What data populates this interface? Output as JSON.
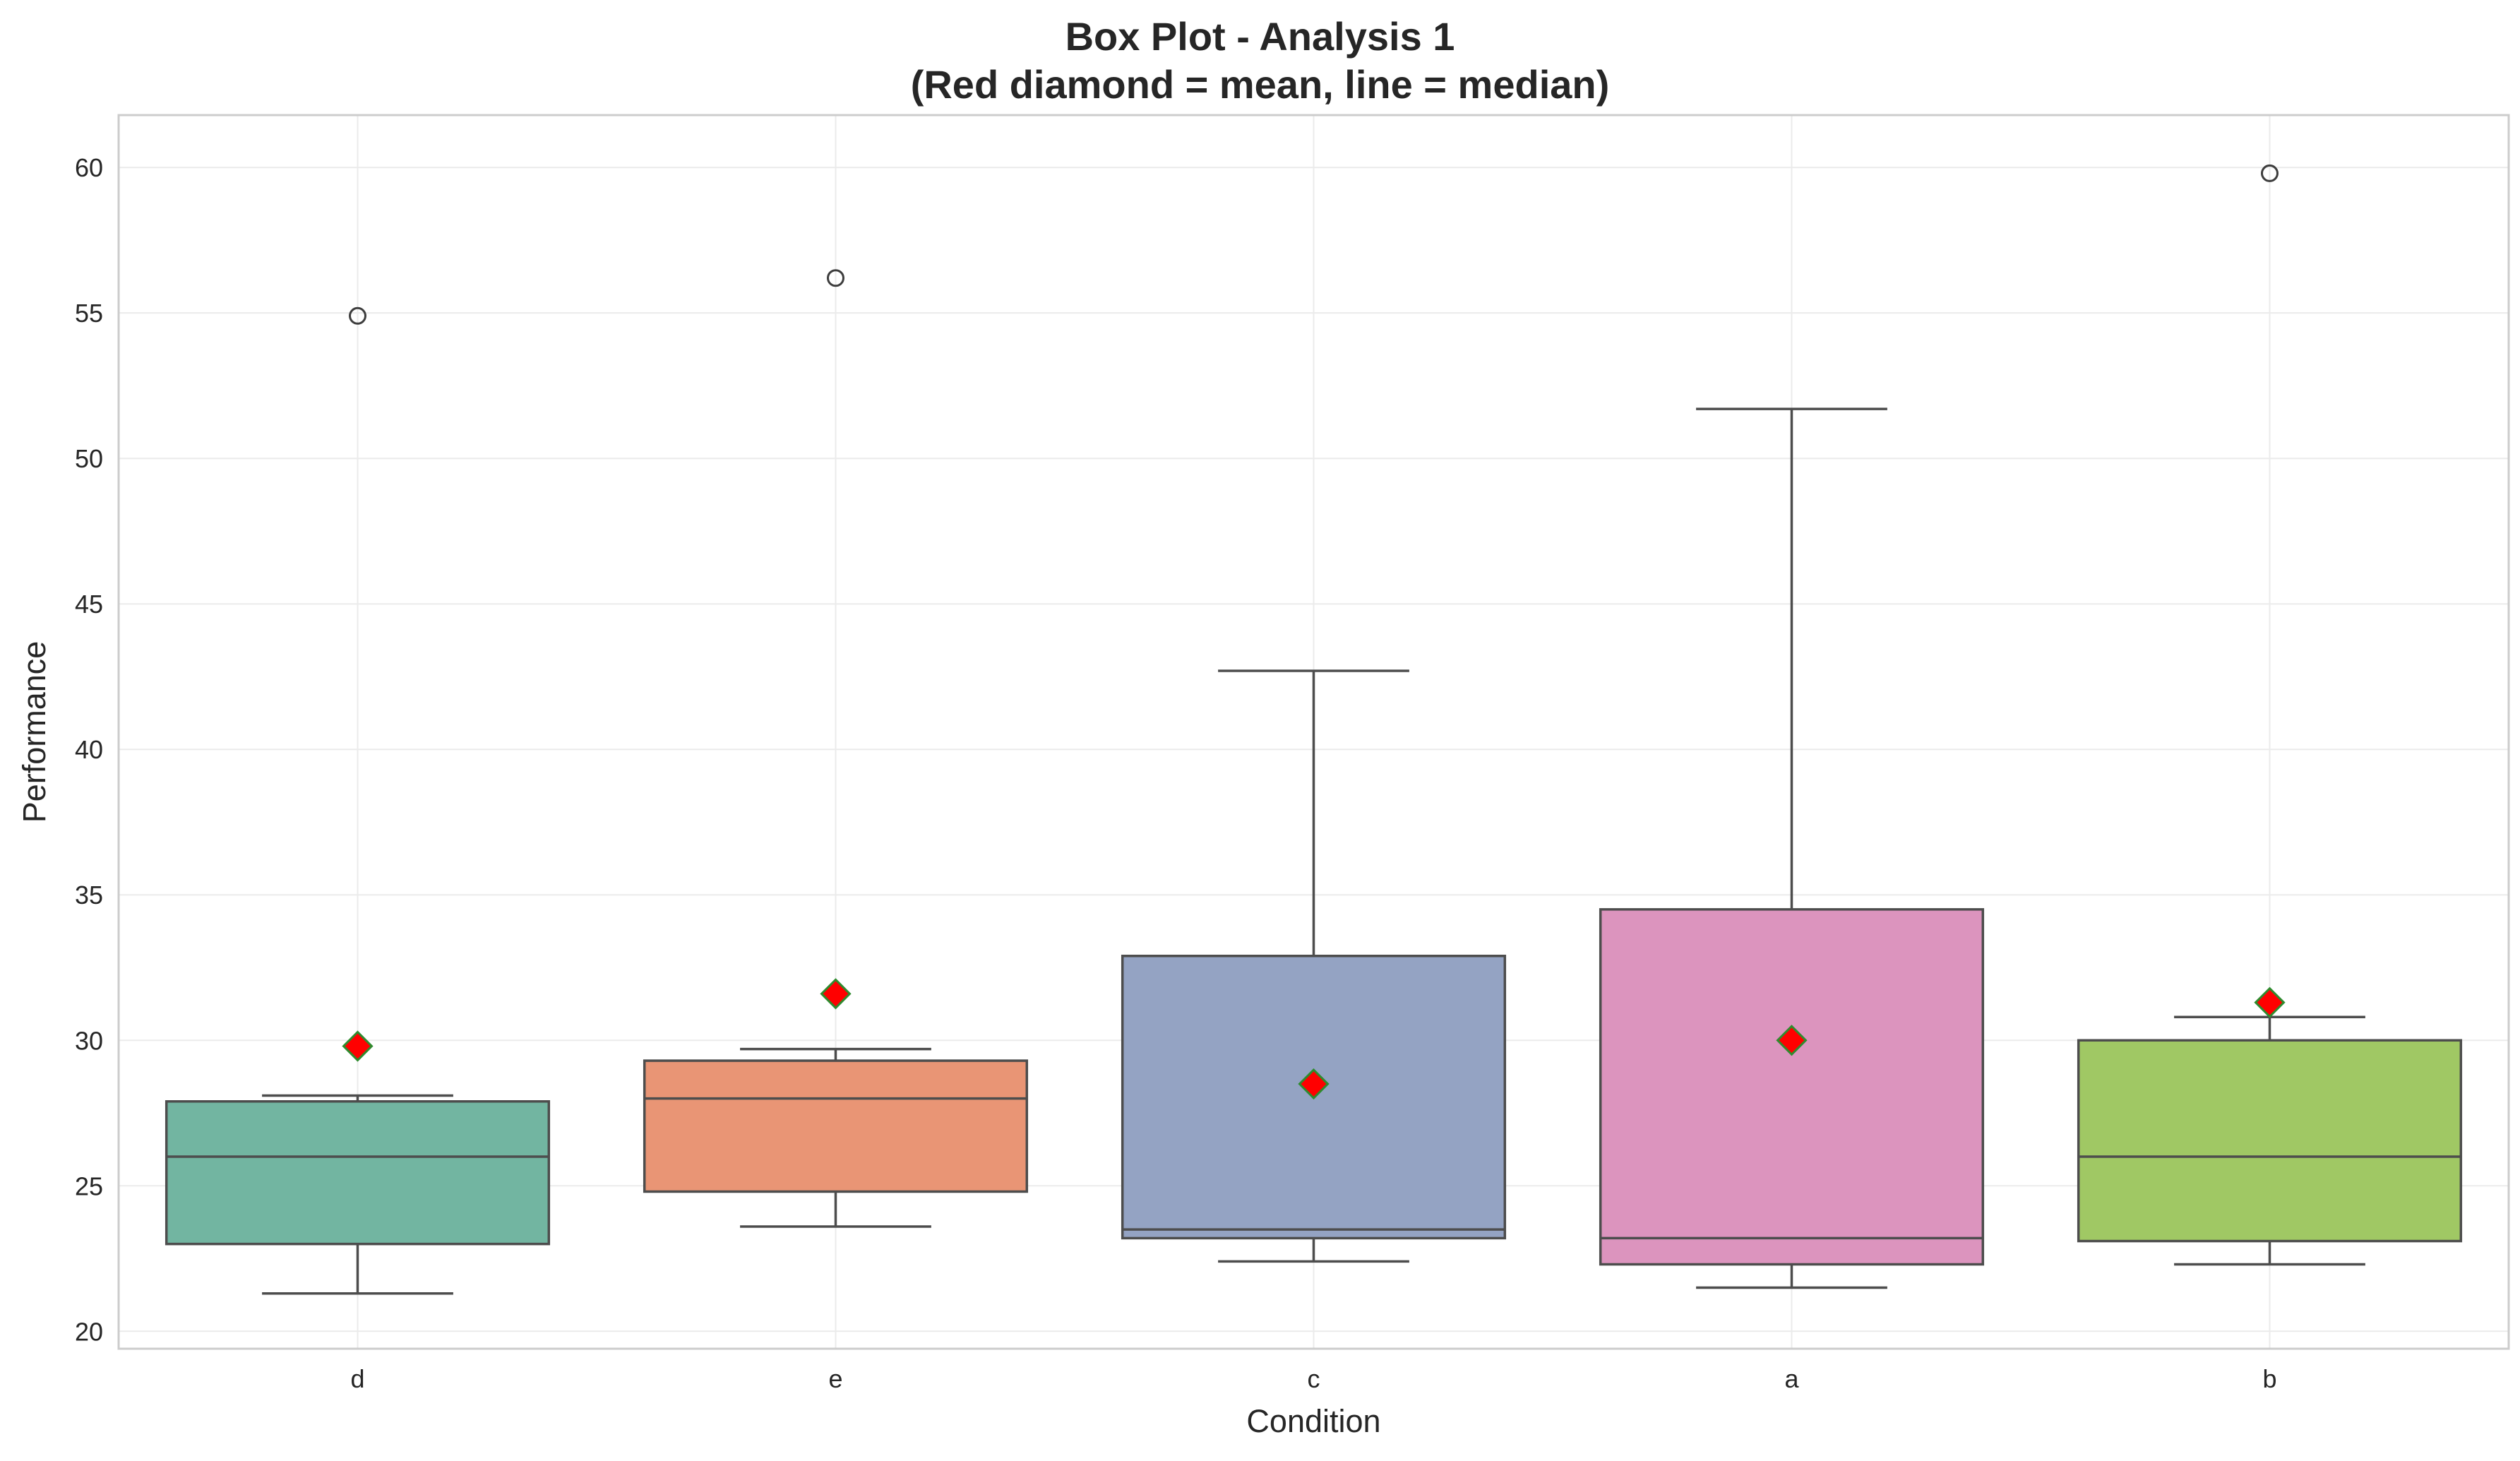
{
  "chart_data": {
    "type": "box",
    "title_lines": [
      "Box Plot - Analysis 1",
      "(Red diamond = mean, line = median)"
    ],
    "xlabel": "Condition",
    "ylabel": "Performance",
    "ylim": [
      19.4,
      61.8
    ],
    "yticks": [
      20,
      25,
      30,
      35,
      40,
      45,
      50,
      55,
      60
    ],
    "grid": true,
    "mean_marker_color": "#ff0000",
    "mean_marker_edge": "#2e8b2e",
    "line_color": "#4d4d4d",
    "groups": [
      {
        "label": "d",
        "color": "#72b5a1",
        "whisker_low": 21.3,
        "q1": 23.0,
        "median": 26.0,
        "q3": 27.9,
        "whisker_high": 28.1,
        "mean": 29.8,
        "outliers": [
          54.9
        ]
      },
      {
        "label": "e",
        "color": "#e99575",
        "whisker_low": 23.6,
        "q1": 24.8,
        "median": 28.0,
        "q3": 29.3,
        "whisker_high": 29.7,
        "mean": 31.6,
        "outliers": [
          56.2
        ]
      },
      {
        "label": "c",
        "color": "#94a3c3",
        "whisker_low": 22.4,
        "q1": 23.2,
        "median": 23.5,
        "q3": 32.9,
        "whisker_high": 42.7,
        "mean": 28.5,
        "outliers": []
      },
      {
        "label": "a",
        "color": "#dc94be",
        "whisker_low": 21.5,
        "q1": 22.3,
        "median": 23.2,
        "q3": 34.5,
        "whisker_high": 51.7,
        "mean": 30.0,
        "outliers": []
      },
      {
        "label": "b",
        "color": "#a0c864",
        "whisker_low": 22.3,
        "q1": 23.1,
        "median": 26.0,
        "q3": 30.0,
        "whisker_high": 30.8,
        "mean": 31.3,
        "outliers": [
          59.8
        ]
      }
    ]
  }
}
